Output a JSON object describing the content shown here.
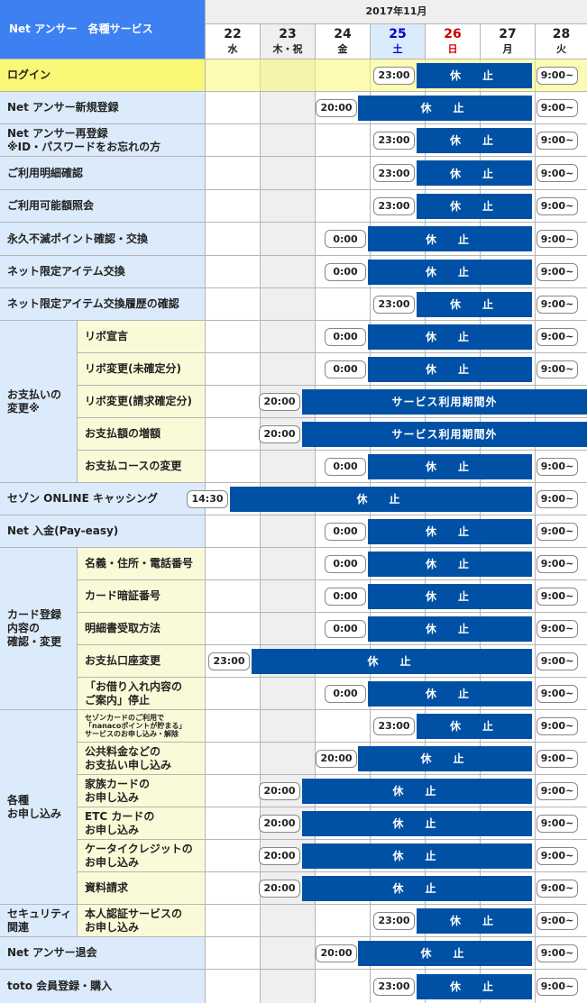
{
  "header": {
    "title": "Net アンサー　各種サービス",
    "month": "2017年11月"
  },
  "days": [
    {
      "num": "22",
      "wd": "水",
      "color": "#222"
    },
    {
      "num": "23",
      "wd": "木・祝",
      "color": "#222"
    },
    {
      "num": "24",
      "wd": "金",
      "color": "#222"
    },
    {
      "num": "25",
      "wd": "土",
      "color": "#0000cc"
    },
    {
      "num": "26",
      "wd": "日",
      "color": "#cc0000"
    },
    {
      "num": "27",
      "wd": "月",
      "color": "#222"
    },
    {
      "num": "28",
      "wd": "火",
      "color": "#222"
    }
  ],
  "groups": {
    "payment": "お支払いの\n変更※",
    "card": "カード登録\n内容の\n確認・変更",
    "apps": "各種\nお申し込み",
    "security": "セキュリティ\n関連"
  },
  "rows": [
    {
      "label": "ログイン",
      "start": "23:00",
      "bar": "休　止",
      "end": "9:00~"
    },
    {
      "label": "Net アンサー新規登録",
      "start": "20:00",
      "bar": "休　止",
      "end": "9:00~"
    },
    {
      "label": "Net アンサー再登録\n※ID・パスワードをお忘れの方",
      "start": "23:00",
      "bar": "休　止",
      "end": "9:00~"
    },
    {
      "label": "ご利用明細確認",
      "start": "23:00",
      "bar": "休　止",
      "end": "9:00~"
    },
    {
      "label": "ご利用可能額照会",
      "start": "23:00",
      "bar": "休　止",
      "end": "9:00~"
    },
    {
      "label": "永久不滅ポイント確認・交換",
      "start": "0:00",
      "bar": "休　止",
      "end": "9:00~"
    },
    {
      "label": "ネット限定アイテム交換",
      "start": "0:00",
      "bar": "休　止",
      "end": "9:00~"
    },
    {
      "label": "ネット限定アイテム交換履歴の確認",
      "start": "23:00",
      "bar": "休　止",
      "end": "9:00~"
    },
    {
      "label": "リボ宣言",
      "start": "0:00",
      "bar": "休　止",
      "end": "9:00~"
    },
    {
      "label": "リボ変更(未確定分)",
      "start": "0:00",
      "bar": "休　止",
      "end": "9:00~"
    },
    {
      "label": "リボ変更(請求確定分)",
      "start": "20:00",
      "bar": "サービス利用期間外",
      "end": ""
    },
    {
      "label": "お支払額の増額",
      "start": "20:00",
      "bar": "サービス利用期間外",
      "end": ""
    },
    {
      "label": "お支払コースの変更",
      "start": "0:00",
      "bar": "休　止",
      "end": "9:00~"
    },
    {
      "label": "セゾン ONLINE キャッシング",
      "start": "14:30",
      "bar": "休　止",
      "end": "9:00~"
    },
    {
      "label": "Net 入金(Pay-easy)",
      "start": "0:00",
      "bar": "休　止",
      "end": "9:00~"
    },
    {
      "label": "名義・住所・電話番号",
      "start": "0:00",
      "bar": "休　止",
      "end": "9:00~"
    },
    {
      "label": "カード暗証番号",
      "start": "0:00",
      "bar": "休　止",
      "end": "9:00~"
    },
    {
      "label": "明細書受取方法",
      "start": "0:00",
      "bar": "休　止",
      "end": "9:00~"
    },
    {
      "label": "お支払口座変更",
      "start": "23:00",
      "bar": "休　止",
      "end": "9:00~"
    },
    {
      "label": "「お借り入れ内容の\nご案内」停止",
      "start": "0:00",
      "bar": "休　止",
      "end": "9:00~"
    },
    {
      "label": "セゾンカードのご利用で\n「nanacoポイントが貯まる」\nサービスのお申し込み・解除",
      "start": "23:00",
      "bar": "休　止",
      "end": "9:00~"
    },
    {
      "label": "公共料金などの\nお支払い申し込み",
      "start": "20:00",
      "bar": "休　止",
      "end": "9:00~"
    },
    {
      "label": "家族カードの\nお申し込み",
      "start": "20:00",
      "bar": "休　止",
      "end": "9:00~"
    },
    {
      "label": "ETC カードの\nお申し込み",
      "start": "20:00",
      "bar": "休　止",
      "end": "9:00~"
    },
    {
      "label": "ケータイクレジットの\nお申し込み",
      "start": "20:00",
      "bar": "休　止",
      "end": "9:00~"
    },
    {
      "label": "資料請求",
      "start": "20:00",
      "bar": "休　止",
      "end": "9:00~"
    },
    {
      "label": "本人認証サービスの\nお申し込み",
      "start": "23:00",
      "bar": "休　止",
      "end": "9:00~"
    },
    {
      "label": "Net アンサー退会",
      "start": "20:00",
      "bar": "休　止",
      "end": "9:00~"
    },
    {
      "label": "toto 会員登録・購入",
      "start": "23:00",
      "bar": "休　止",
      "end": "9:00~"
    }
  ]
}
